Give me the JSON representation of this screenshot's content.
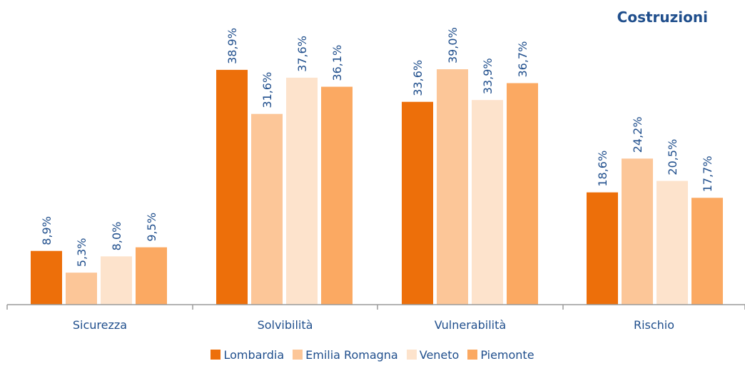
{
  "chart_data": {
    "type": "bar",
    "title": "Costruzioni",
    "categories": [
      "Sicurezza",
      "Solvibilità",
      "Vulnerabilità",
      "Rischio"
    ],
    "series": [
      {
        "name": "Lombardia",
        "color": "#ed6f0a",
        "values": [
          8.9,
          38.9,
          33.6,
          18.6
        ],
        "labels": [
          "8,9%",
          "38,9%",
          "33,6%",
          "18,6%"
        ]
      },
      {
        "name": "Emilia Romagna",
        "color": "#fcc698",
        "values": [
          5.3,
          31.6,
          39.0,
          24.2
        ],
        "labels": [
          "5,3%",
          "31,6%",
          "39,0%",
          "24,2%"
        ]
      },
      {
        "name": "Veneto",
        "color": "#fde3cc",
        "values": [
          8.0,
          37.6,
          33.9,
          20.5
        ],
        "labels": [
          "8,0%",
          "37,6%",
          "33,9%",
          "20,5%"
        ]
      },
      {
        "name": "Piemonte",
        "color": "#fba962",
        "values": [
          9.5,
          36.1,
          36.7,
          17.7
        ],
        "labels": [
          "9,5%",
          "36,1%",
          "36,7%",
          "17,7%"
        ]
      }
    ],
    "ylim": [
      0,
      45
    ],
    "grid": false,
    "legend_position": "bottom",
    "label_color": "#1f4e8c"
  }
}
